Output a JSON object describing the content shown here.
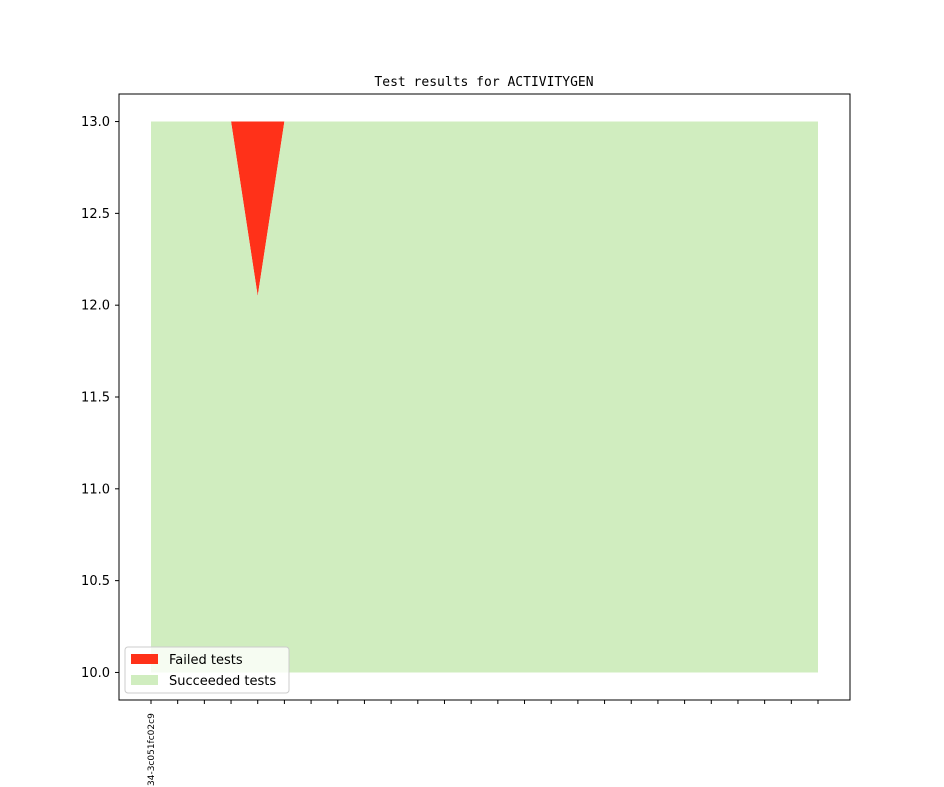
{
  "chart_data": {
    "type": "area",
    "title": "Test results for ACTIVITYGEN",
    "xlabel": "",
    "ylabel": "",
    "ylim": [
      9.85,
      13.15
    ],
    "yticks": [
      10.0,
      10.5,
      11.0,
      11.5,
      12.0,
      12.5,
      13.0
    ],
    "ytick_labels": [
      "10.0",
      "10.5",
      "11.0",
      "11.5",
      "12.0",
      "12.5",
      "13.0"
    ],
    "x_count": 26,
    "x_tick_labels": [
      "34-3c051fc02c9"
    ],
    "baseline": 10.0,
    "total": [
      13,
      13,
      13,
      13,
      13,
      13,
      13,
      13,
      13,
      13,
      13,
      13,
      13,
      13,
      13,
      13,
      13,
      13,
      13,
      13,
      13,
      13,
      13,
      13,
      13,
      13
    ],
    "succeeded": [
      13,
      13,
      13,
      13,
      12.05,
      13,
      13,
      13,
      13,
      13,
      13,
      13,
      13,
      13,
      13,
      13,
      13,
      13,
      13,
      13,
      13,
      13,
      13,
      13,
      13,
      13
    ],
    "series": [
      {
        "name": "Failed tests",
        "color": "#ff3119"
      },
      {
        "name": "Succeeded tests",
        "color": "#d0edbf"
      }
    ],
    "legend": "lower-left",
    "grid": false
  }
}
